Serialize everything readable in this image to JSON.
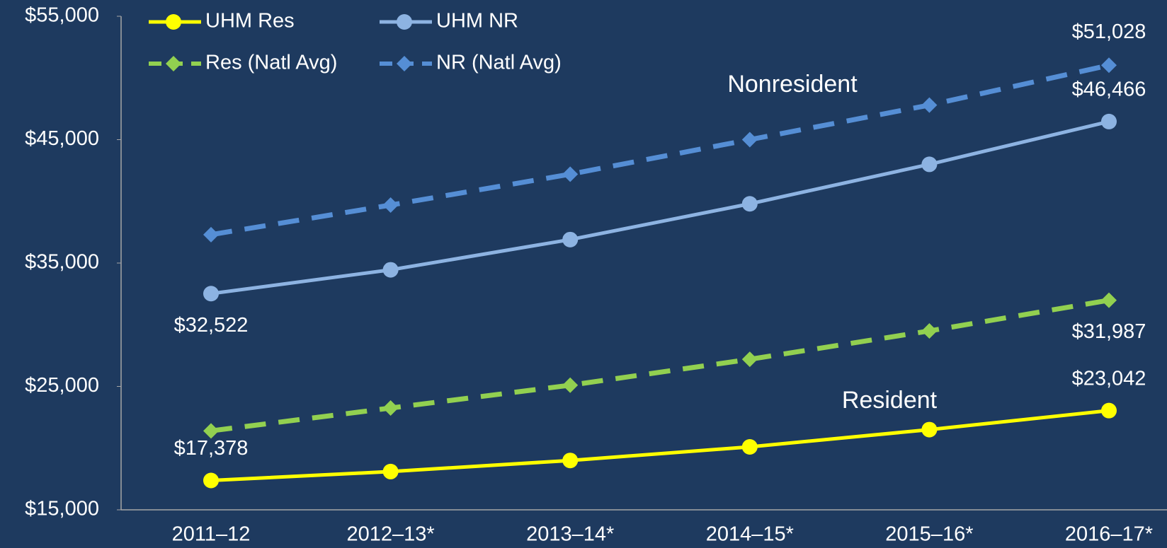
{
  "chart_data": {
    "type": "line",
    "categories": [
      "2011–12",
      "2012–13*",
      "2013–14*",
      "2014–15*",
      "2015–16*",
      "2016–17*"
    ],
    "series": [
      {
        "name": "UHM Res",
        "color": "#ffff00",
        "marker": "circle",
        "dashed": false,
        "values": [
          17378,
          18100,
          19000,
          20100,
          21500,
          23042
        ],
        "value_labels": [
          "$17,378",
          null,
          null,
          null,
          null,
          "$23,042"
        ]
      },
      {
        "name": "UHM NR",
        "color": "#8db3e2",
        "marker": "circle",
        "dashed": false,
        "values": [
          32522,
          34450,
          36900,
          39800,
          43000,
          46466
        ],
        "value_labels": [
          "$32,522",
          null,
          null,
          null,
          null,
          "$46,466"
        ]
      },
      {
        "name": "Res (Natl Avg)",
        "color": "#92d050",
        "marker": "diamond",
        "dashed": true,
        "values": [
          21400,
          23250,
          25100,
          27200,
          29500,
          31987
        ],
        "value_labels": [
          null,
          null,
          null,
          null,
          null,
          "$31,987"
        ]
      },
      {
        "name": "NR (Natl Avg)",
        "color": "#558ed5",
        "marker": "diamond",
        "dashed": true,
        "values": [
          37300,
          39700,
          42200,
          45000,
          47800,
          51028
        ],
        "value_labels": [
          null,
          null,
          null,
          null,
          null,
          "$51,028"
        ]
      }
    ],
    "annotations": [
      "Nonresident",
      "Resident"
    ],
    "ylim": [
      15000,
      55000
    ],
    "yticks": [
      {
        "value": 15000,
        "label": "$15,000"
      },
      {
        "value": 25000,
        "label": "$25,000"
      },
      {
        "value": 35000,
        "label": "$35,000"
      },
      {
        "value": 45000,
        "label": "$45,000"
      },
      {
        "value": 55000,
        "label": "$55,000"
      }
    ],
    "grid": false,
    "legend": "top-left"
  }
}
